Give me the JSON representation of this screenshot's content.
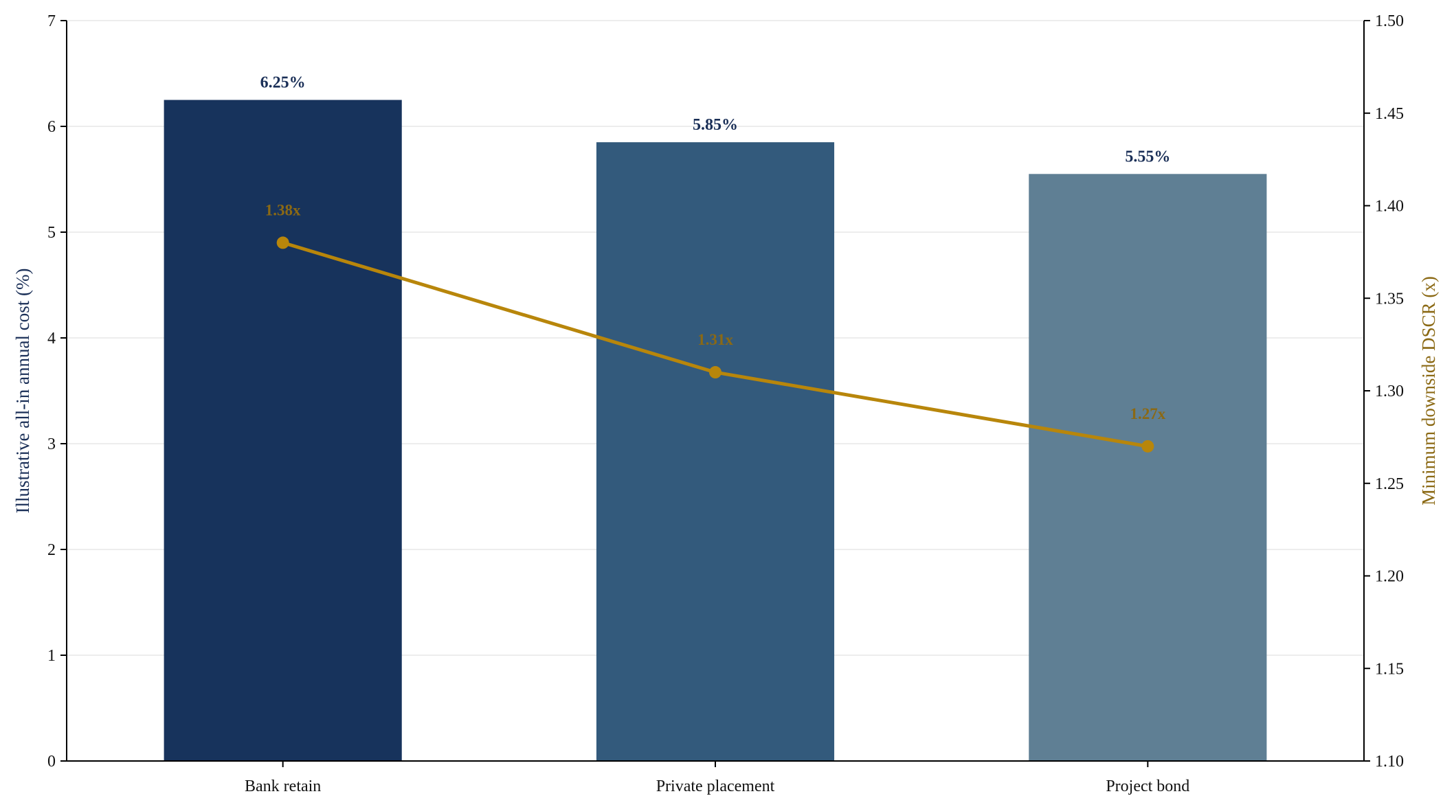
{
  "chart_data": {
    "type": "bar",
    "categories": [
      "Bank retain",
      "Private placement",
      "Project bond"
    ],
    "bar_series": {
      "values": [
        6.25,
        5.85,
        5.55
      ],
      "value_labels": [
        "6.25%",
        "5.85%",
        "5.55%"
      ],
      "colors": [
        "#17335c",
        "#335a7c",
        "#5f7f94"
      ]
    },
    "line_series": {
      "values": [
        1.38,
        1.31,
        1.27
      ],
      "value_labels": [
        "1.38x",
        "1.31x",
        "1.27x"
      ],
      "color": "#b8860b",
      "label_color": "#8b6914"
    },
    "ylabel_left": "Illustrative all-in annual cost (%)",
    "ylabel_right": "Minimum downside DSCR (x)",
    "ylim_left": [
      0,
      7
    ],
    "ylim_right": [
      1.1,
      1.5
    ],
    "yticks_left": [
      "0",
      "1",
      "2",
      "3",
      "4",
      "5",
      "6",
      "7"
    ],
    "yticks_right": [
      "1.10",
      "1.15",
      "1.20",
      "1.25",
      "1.30",
      "1.35",
      "1.40",
      "1.45",
      "1.50"
    ],
    "grid": true,
    "colors": {
      "left_axis_title": "#1a2f57",
      "bar_label": "#1a2f57",
      "right_axis_title": "#8b6914"
    }
  }
}
